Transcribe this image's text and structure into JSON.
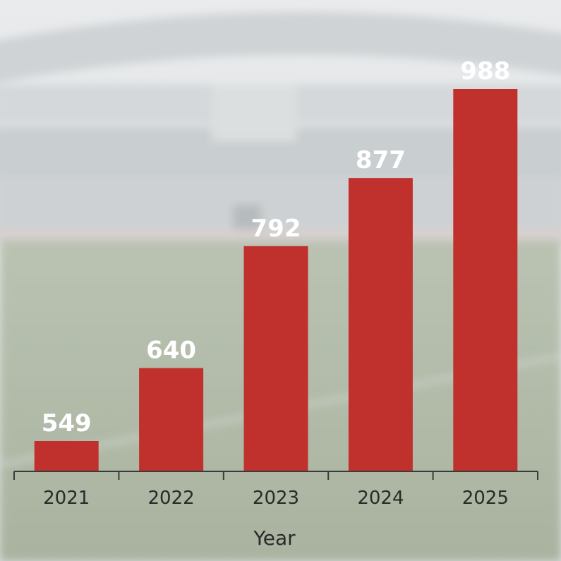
{
  "chart_data": {
    "type": "bar",
    "categories": [
      "2021",
      "2022",
      "2023",
      "2024",
      "2025"
    ],
    "values": [
      549,
      640,
      792,
      877,
      988
    ],
    "title": "",
    "xlabel": "Year",
    "ylabel": "",
    "ylim": [
      450,
      1000
    ],
    "grid": false,
    "bar_color": "#c0312d",
    "label_color": "#ffffff",
    "background": "blurred stadium photo"
  }
}
